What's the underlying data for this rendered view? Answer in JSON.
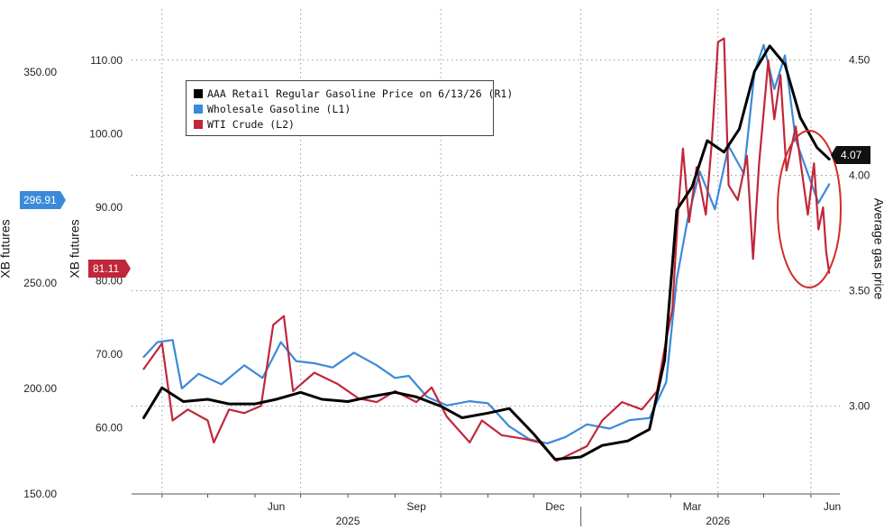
{
  "chart_data": {
    "type": "line",
    "title": "",
    "x_ticks": [
      "Jun",
      "Sep",
      "Dec",
      "Mar",
      "Jun"
    ],
    "year_labels": [
      "2025",
      "2026"
    ],
    "axes": {
      "left_outer": {
        "label": "XB futures",
        "ticks": [
          "150.00",
          "200.00",
          "250.00",
          "350.00"
        ],
        "range": [
          150,
          380
        ]
      },
      "left_inner": {
        "label": "XB futures",
        "ticks": [
          "60.00",
          "70.00",
          "80.00",
          "90.00",
          "100.00",
          "110.00"
        ],
        "range": [
          51,
          117
        ]
      },
      "right": {
        "label": "Average gas price",
        "ticks": [
          "3.00",
          "3.50",
          "4.00",
          "4.50"
        ],
        "range": [
          2.62,
          4.72
        ]
      }
    },
    "legend_placement": "top-left",
    "grid": true,
    "series": [
      {
        "name": "AAA Retail Regular Gasoline Price on 6/13/26 (R1)",
        "axis": "right",
        "color": "#000000",
        "last_value": "4.07",
        "points": [
          [
            "2025-03-20",
            2.95
          ],
          [
            "2025-04-01",
            3.08
          ],
          [
            "2025-04-15",
            3.02
          ],
          [
            "2025-05-01",
            3.03
          ],
          [
            "2025-05-15",
            3.01
          ],
          [
            "2025-06-01",
            3.01
          ],
          [
            "2025-06-15",
            3.03
          ],
          [
            "2025-07-01",
            3.06
          ],
          [
            "2025-07-15",
            3.03
          ],
          [
            "2025-08-01",
            3.02
          ],
          [
            "2025-08-15",
            3.04
          ],
          [
            "2025-09-01",
            3.06
          ],
          [
            "2025-09-15",
            3.04
          ],
          [
            "2025-10-01",
            3.0
          ],
          [
            "2025-10-15",
            2.95
          ],
          [
            "2025-11-01",
            2.97
          ],
          [
            "2025-11-15",
            2.99
          ],
          [
            "2025-12-01",
            2.88
          ],
          [
            "2025-12-15",
            2.77
          ],
          [
            "2026-01-01",
            2.78
          ],
          [
            "2026-01-15",
            2.83
          ],
          [
            "2026-02-01",
            2.85
          ],
          [
            "2026-02-15",
            2.9
          ],
          [
            "2026-02-25",
            3.2
          ],
          [
            "2026-03-05",
            3.85
          ],
          [
            "2026-03-15",
            3.95
          ],
          [
            "2026-03-25",
            4.15
          ],
          [
            "2026-04-05",
            4.1
          ],
          [
            "2026-04-15",
            4.2
          ],
          [
            "2026-04-25",
            4.45
          ],
          [
            "2026-05-05",
            4.56
          ],
          [
            "2026-05-15",
            4.48
          ],
          [
            "2026-05-25",
            4.25
          ],
          [
            "2026-06-05",
            4.12
          ],
          [
            "2026-06-13",
            4.07
          ]
        ]
      },
      {
        "name": "Wholesale Gasoline (L1)",
        "axis": "left_outer",
        "color": "#3b8ad9",
        "last_value": "296.91",
        "points": [
          [
            "2025-03-20",
            215
          ],
          [
            "2025-03-29",
            222
          ],
          [
            "2025-04-08",
            223
          ],
          [
            "2025-04-14",
            200
          ],
          [
            "2025-04-25",
            207
          ],
          [
            "2025-05-10",
            202
          ],
          [
            "2025-05-25",
            211
          ],
          [
            "2025-06-06",
            205
          ],
          [
            "2025-06-18",
            222
          ],
          [
            "2025-06-28",
            213
          ],
          [
            "2025-07-10",
            212
          ],
          [
            "2025-07-22",
            210
          ],
          [
            "2025-08-05",
            217
          ],
          [
            "2025-08-20",
            211
          ],
          [
            "2025-09-01",
            205
          ],
          [
            "2025-09-10",
            206
          ],
          [
            "2025-09-22",
            196
          ],
          [
            "2025-10-05",
            192
          ],
          [
            "2025-10-20",
            194
          ],
          [
            "2025-11-01",
            193
          ],
          [
            "2025-11-15",
            182
          ],
          [
            "2025-11-28",
            176
          ],
          [
            "2025-12-10",
            174
          ],
          [
            "2025-12-22",
            177
          ],
          [
            "2026-01-05",
            183
          ],
          [
            "2026-01-20",
            181
          ],
          [
            "2026-02-02",
            185
          ],
          [
            "2026-02-15",
            186
          ],
          [
            "2026-02-26",
            203
          ],
          [
            "2026-03-05",
            252
          ],
          [
            "2026-03-12",
            280
          ],
          [
            "2026-03-20",
            303
          ],
          [
            "2026-03-30",
            285
          ],
          [
            "2026-04-08",
            315
          ],
          [
            "2026-04-18",
            302
          ],
          [
            "2026-04-25",
            350
          ],
          [
            "2026-05-01",
            363
          ],
          [
            "2026-05-08",
            342
          ],
          [
            "2026-05-15",
            358
          ],
          [
            "2026-05-22",
            318
          ],
          [
            "2026-05-30",
            302
          ],
          [
            "2026-06-06",
            288
          ],
          [
            "2026-06-13",
            296.91
          ]
        ]
      },
      {
        "name": "WTI Crude (L2)",
        "axis": "left_inner",
        "color": "#c0273a",
        "last_value": "81.11",
        "points": [
          [
            "2025-03-20",
            68.0
          ],
          [
            "2025-04-01",
            71.5
          ],
          [
            "2025-04-08",
            61.0
          ],
          [
            "2025-04-18",
            62.5
          ],
          [
            "2025-05-01",
            61.0
          ],
          [
            "2025-05-05",
            58.0
          ],
          [
            "2025-05-15",
            62.5
          ],
          [
            "2025-05-25",
            62.0
          ],
          [
            "2025-06-05",
            63.0
          ],
          [
            "2025-06-13",
            74.0
          ],
          [
            "2025-06-20",
            75.2
          ],
          [
            "2025-06-26",
            65.0
          ],
          [
            "2025-07-10",
            67.5
          ],
          [
            "2025-07-25",
            66.0
          ],
          [
            "2025-08-08",
            64.0
          ],
          [
            "2025-08-20",
            63.5
          ],
          [
            "2025-09-01",
            65.0
          ],
          [
            "2025-09-15",
            63.5
          ],
          [
            "2025-09-25",
            65.5
          ],
          [
            "2025-10-05",
            61.5
          ],
          [
            "2025-10-20",
            58.0
          ],
          [
            "2025-10-28",
            61.0
          ],
          [
            "2025-11-10",
            59.0
          ],
          [
            "2025-11-25",
            58.5
          ],
          [
            "2025-12-05",
            58.0
          ],
          [
            "2025-12-16",
            55.5
          ],
          [
            "2026-01-05",
            57.5
          ],
          [
            "2026-01-15",
            61.0
          ],
          [
            "2026-01-28",
            63.5
          ],
          [
            "2026-02-10",
            62.5
          ],
          [
            "2026-02-20",
            65.0
          ],
          [
            "2026-02-26",
            72.0
          ],
          [
            "2026-03-02",
            76.0
          ],
          [
            "2026-03-06",
            90.0
          ],
          [
            "2026-03-09",
            98.0
          ],
          [
            "2026-03-13",
            88.0
          ],
          [
            "2026-03-18",
            95.5
          ],
          [
            "2026-03-24",
            89.0
          ],
          [
            "2026-03-28",
            99.0
          ],
          [
            "2026-04-01",
            112.5
          ],
          [
            "2026-04-05",
            113.0
          ],
          [
            "2026-04-08",
            93.0
          ],
          [
            "2026-04-14",
            91.0
          ],
          [
            "2026-04-20",
            97.0
          ],
          [
            "2026-04-24",
            83.0
          ],
          [
            "2026-04-28",
            96.0
          ],
          [
            "2026-05-04",
            110.0
          ],
          [
            "2026-05-08",
            102.0
          ],
          [
            "2026-05-12",
            108.0
          ],
          [
            "2026-05-16",
            95.0
          ],
          [
            "2026-05-22",
            101.0
          ],
          [
            "2026-05-26",
            95.0
          ],
          [
            "2026-05-30",
            89.0
          ],
          [
            "2026-06-03",
            96.0
          ],
          [
            "2026-06-06",
            87.0
          ],
          [
            "2026-06-09",
            90.0
          ],
          [
            "2026-06-11",
            84.0
          ],
          [
            "2026-06-13",
            81.11
          ]
        ]
      }
    ]
  },
  "colors": {
    "retail": "#000000",
    "wholesale": "#3b8ad9",
    "wti": "#c0273a",
    "annotation_circle": "#d42a2a",
    "grid": "#9a9a9a"
  }
}
